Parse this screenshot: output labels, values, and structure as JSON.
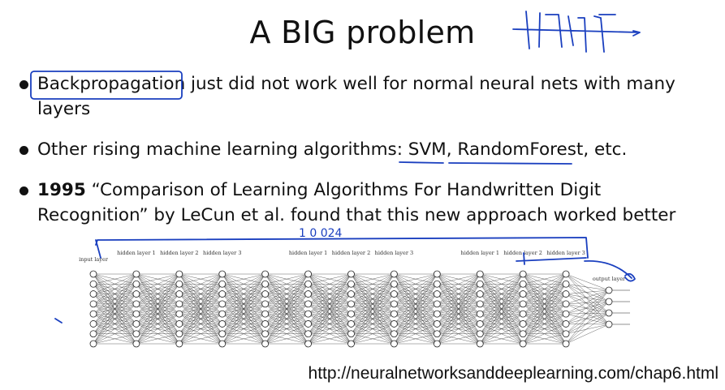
{
  "slide": {
    "title": "A BIG problem",
    "bullets": [
      {
        "lead": "",
        "text": "Backpropagation just did not work well for normal neural nets with many layers"
      },
      {
        "lead": "",
        "text": "Other rising machine learning algorithms: SVM, RandomForest, etc."
      },
      {
        "lead": "1995",
        "text": " “Comparison of Learning Algorithms For Handwritten Digit Recognition” by LeCun et al. found that this new approach worked better"
      }
    ],
    "figure": {
      "labels": {
        "input": "input layer",
        "hidden": [
          "hidden layer 1",
          "hidden layer 2",
          "hidden layer 3"
        ],
        "output": "output layer"
      },
      "handwritten_note": "1 0 024"
    },
    "url": "http://neuralnetworksanddeeplearning.com/chap6.html"
  }
}
